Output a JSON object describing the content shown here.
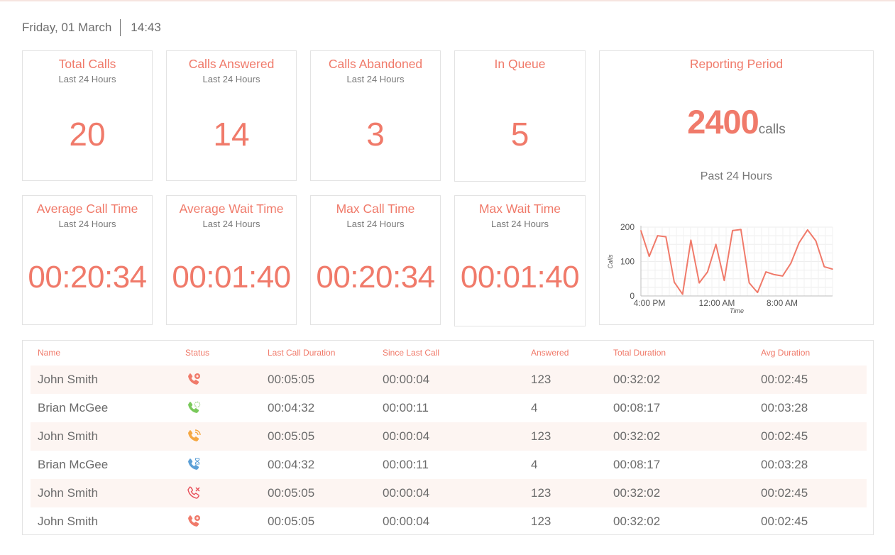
{
  "header": {
    "date": "Friday, 01 March",
    "time": "14:43"
  },
  "stats": [
    {
      "title": "Total Calls",
      "subtitle": "Last 24 Hours",
      "value": "20"
    },
    {
      "title": "Calls Answered",
      "subtitle": "Last 24 Hours",
      "value": "14"
    },
    {
      "title": "Calls Abandoned",
      "subtitle": "Last 24 Hours",
      "value": "3"
    },
    {
      "title": "In Queue",
      "subtitle": "",
      "value": "5"
    },
    {
      "title": "Average Call Time",
      "subtitle": "Last 24 Hours",
      "value": "00:20:34"
    },
    {
      "title": "Average Wait Time",
      "subtitle": "Last 24 Hours",
      "value": "00:01:40"
    },
    {
      "title": "Max Call Time",
      "subtitle": "Last 24 Hours",
      "value": "00:20:34"
    },
    {
      "title": "Max Wait Time",
      "subtitle": "Last 24 Hours",
      "value": "00:01:40"
    }
  ],
  "report": {
    "title": "Reporting Period",
    "value": "2400",
    "unit": "calls",
    "period": "Past 24 Hours"
  },
  "chart_data": {
    "type": "line",
    "ylabel": "Calls",
    "xlabel": "Time",
    "ylim": [
      0,
      200
    ],
    "yticks": [
      "200",
      "100",
      "0"
    ],
    "xtick_labels": [
      "4:00 PM",
      "12:00 AM",
      "8:00 AM"
    ],
    "grid": true,
    "color": "#f07a6a",
    "series": [
      {
        "values": [
          190,
          115,
          175,
          172,
          40,
          5,
          162,
          38,
          70,
          150,
          45,
          190,
          193,
          38,
          10,
          70,
          62,
          58,
          95,
          155,
          192,
          160,
          85,
          78
        ]
      }
    ]
  },
  "table": {
    "columns": [
      "Name",
      "Status",
      "Last Call Duration",
      "Since Last Call",
      "Answered",
      "Total Duration",
      "Avg Duration"
    ],
    "rows": [
      {
        "name": "John Smith",
        "status_icon": "phone-on-call-icon",
        "status_color": "#f07a6a",
        "last": "00:05:05",
        "since": "00:00:04",
        "answered": "123",
        "total": "00:32:02",
        "avg": "00:02:45"
      },
      {
        "name": "Brian McGee",
        "status_icon": "phone-ringing-icon",
        "status_color": "#79c95a",
        "last": "00:04:32",
        "since": "00:00:11",
        "answered": "4",
        "total": "00:08:17",
        "avg": "00:03:28"
      },
      {
        "name": "John Smith",
        "status_icon": "phone-wave-icon",
        "status_color": "#f5a742",
        "last": "00:05:05",
        "since": "00:00:04",
        "answered": "123",
        "total": "00:32:02",
        "avg": "00:02:45"
      },
      {
        "name": "Brian McGee",
        "status_icon": "phone-hold-icon",
        "status_color": "#5b9fd6",
        "last": "00:04:32",
        "since": "00:00:11",
        "answered": "4",
        "total": "00:08:17",
        "avg": "00:03:28"
      },
      {
        "name": "John Smith",
        "status_icon": "phone-missed-icon",
        "status_color": "#e8505b",
        "last": "00:05:05",
        "since": "00:00:04",
        "answered": "123",
        "total": "00:32:02",
        "avg": "00:02:45"
      },
      {
        "name": "John Smith",
        "status_icon": "phone-on-call-icon",
        "status_color": "#f07a6a",
        "last": "00:05:05",
        "since": "00:00:04",
        "answered": "123",
        "total": "00:32:02",
        "avg": "00:02:45"
      }
    ]
  }
}
